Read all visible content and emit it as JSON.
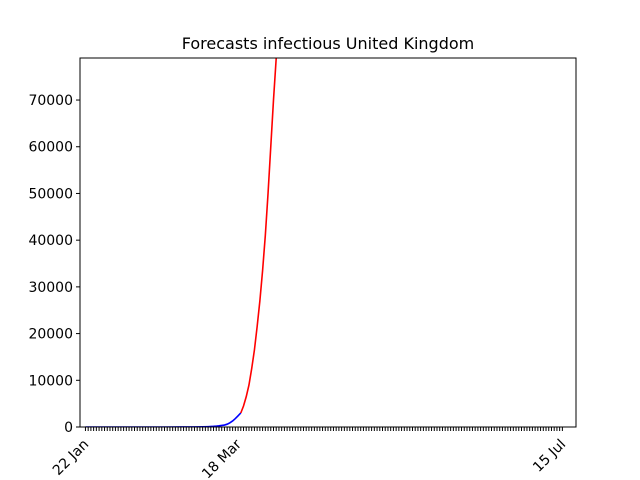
{
  "chart_data": {
    "type": "line",
    "title": "Forecasts infectious United Kingdom",
    "xlabel": "",
    "ylabel": "",
    "x_axis": {
      "start": "22 Jan",
      "end": "15 Jul",
      "labeled_ticks": [
        {
          "label": "22 Jan",
          "day": 0
        },
        {
          "label": "18 Mar",
          "day": 56
        },
        {
          "label": "15 Jul",
          "day": 175
        }
      ],
      "minor_tick_every_days": 1
    },
    "ylim": [
      0,
      79000
    ],
    "yticks": [
      0,
      10000,
      20000,
      30000,
      40000,
      50000,
      60000,
      70000
    ],
    "grid": false,
    "legend": "none",
    "series": [
      {
        "color": "#0000ff",
        "points": [
          [
            0,
            0
          ],
          [
            10,
            0
          ],
          [
            20,
            0
          ],
          [
            30,
            2
          ],
          [
            35,
            8
          ],
          [
            40,
            20
          ],
          [
            43,
            40
          ],
          [
            45,
            80
          ],
          [
            47,
            140
          ],
          [
            48,
            190
          ],
          [
            49,
            250
          ],
          [
            50,
            330
          ],
          [
            51,
            420
          ],
          [
            52,
            600
          ],
          [
            53,
            900
          ],
          [
            54,
            1300
          ],
          [
            55,
            1800
          ],
          [
            56,
            2400
          ],
          [
            57,
            3000
          ]
        ]
      },
      {
        "color": "#ff0000",
        "points": [
          [
            57,
            3000
          ],
          [
            58,
            4500
          ],
          [
            59,
            6500
          ],
          [
            60,
            9000
          ],
          [
            61,
            12500
          ],
          [
            62,
            16500
          ],
          [
            63,
            21500
          ],
          [
            64,
            27000
          ],
          [
            65,
            33500
          ],
          [
            66,
            41000
          ],
          [
            67,
            50000
          ],
          [
            68,
            60000
          ],
          [
            69,
            70000
          ],
          [
            70,
            79000
          ]
        ]
      }
    ]
  }
}
